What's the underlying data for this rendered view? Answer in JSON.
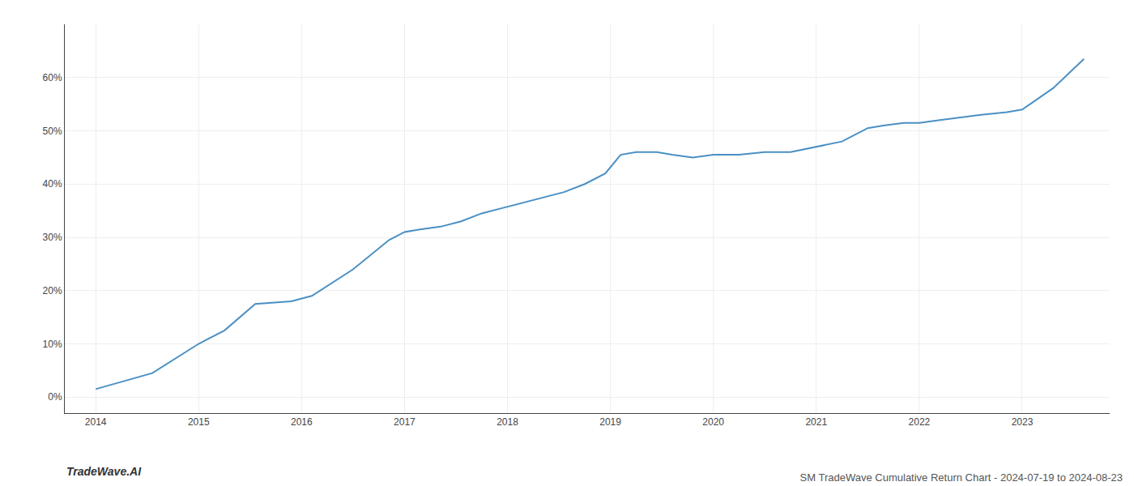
{
  "chart_data": {
    "type": "line",
    "title": "SM TradeWave Cumulative Return Chart - 2024-07-19 to 2024-08-23",
    "annotations": [
      "TradeWave.AI"
    ],
    "x": [
      2014.0,
      2014.55,
      2015.0,
      2015.25,
      2015.55,
      2015.9,
      2016.1,
      2016.5,
      2016.85,
      2017.0,
      2017.15,
      2017.35,
      2017.55,
      2017.75,
      2017.95,
      2018.15,
      2018.35,
      2018.55,
      2018.75,
      2018.95,
      2019.1,
      2019.25,
      2019.45,
      2019.6,
      2019.8,
      2020.0,
      2020.25,
      2020.5,
      2020.75,
      2021.0,
      2021.25,
      2021.5,
      2021.65,
      2021.85,
      2022.0,
      2022.2,
      2022.4,
      2022.6,
      2022.85,
      2023.0,
      2023.3,
      2023.6
    ],
    "values": [
      1.5,
      4.5,
      10.0,
      12.5,
      17.5,
      18.0,
      19.0,
      24.0,
      29.5,
      31.0,
      31.5,
      32.0,
      33.0,
      34.5,
      35.5,
      36.5,
      37.5,
      38.5,
      40.0,
      42.0,
      45.5,
      46.0,
      46.0,
      45.5,
      45.0,
      45.5,
      45.5,
      46.0,
      46.0,
      47.0,
      48.0,
      50.5,
      51.0,
      51.5,
      51.5,
      52.0,
      52.5,
      53.0,
      53.5,
      54.0,
      58.0,
      63.5
    ],
    "color": "#4a90c4",
    "xlim": [
      2013.7,
      2023.85
    ],
    "ylim": [
      -3,
      70
    ],
    "xticks": [
      2014,
      2015,
      2016,
      2017,
      2018,
      2019,
      2020,
      2021,
      2022,
      2023
    ],
    "yticks": [
      {
        "value": 0,
        "label": "0%"
      },
      {
        "value": 10,
        "label": "10%"
      },
      {
        "value": 20,
        "label": "20%"
      },
      {
        "value": 30,
        "label": "30%"
      },
      {
        "value": 40,
        "label": "40%"
      },
      {
        "value": 50,
        "label": "50%"
      },
      {
        "value": 60,
        "label": "60%"
      }
    ],
    "grid": true
  }
}
